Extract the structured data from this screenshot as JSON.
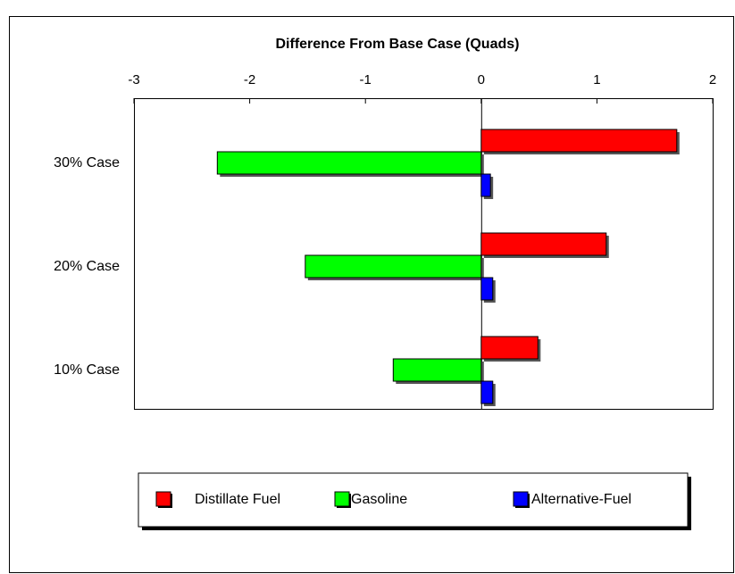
{
  "chart_data": {
    "type": "hbar",
    "title": "Difference From Base Case (Quads)",
    "categories": [
      "30% Case",
      "20% Case",
      "10% Case"
    ],
    "series": [
      {
        "name": "Distillate Fuel",
        "color": "#ff0000",
        "values": [
          1.69,
          1.08,
          0.49
        ]
      },
      {
        "name": "Gasoline",
        "color": "#00ff00",
        "values": [
          -2.28,
          -1.52,
          -0.76
        ]
      },
      {
        "name": "Alternative-Fuel",
        "color": "#0000ff",
        "values": [
          0.08,
          0.1,
          0.1
        ]
      }
    ],
    "xlim": [
      -3,
      2
    ],
    "xticks": [
      -3,
      -2,
      -1,
      0,
      1,
      2
    ],
    "legend": "bottom"
  }
}
